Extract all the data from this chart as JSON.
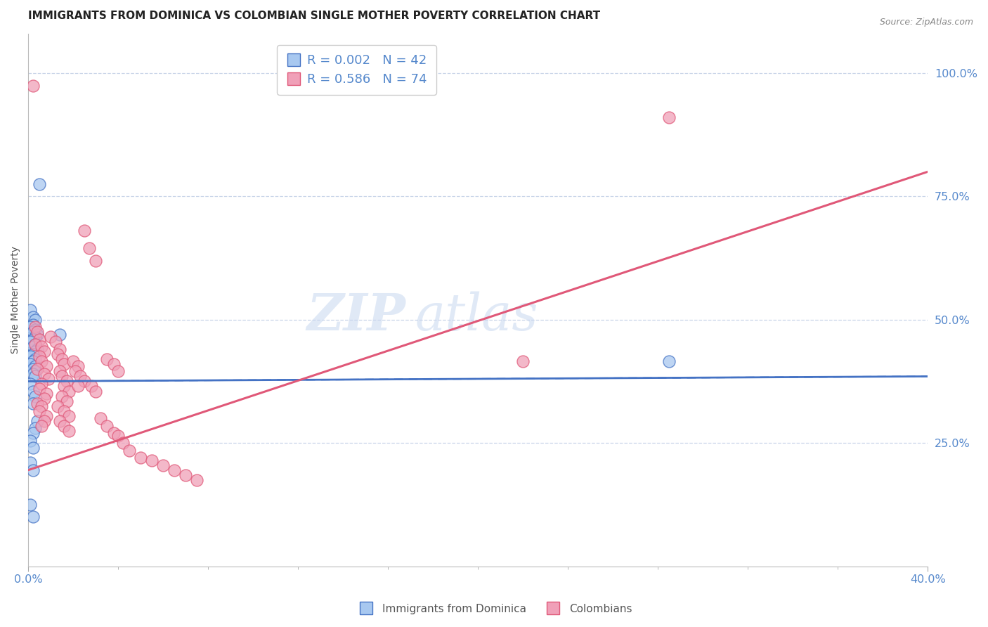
{
  "title": "IMMIGRANTS FROM DOMINICA VS COLOMBIAN SINGLE MOTHER POVERTY CORRELATION CHART",
  "source": "Source: ZipAtlas.com",
  "ylabel": "Single Mother Poverty",
  "xlim": [
    0.0,
    0.4
  ],
  "ylim": [
    0.0,
    1.08
  ],
  "yticks": [
    0.25,
    0.5,
    0.75,
    1.0
  ],
  "ytick_labels": [
    "25.0%",
    "50.0%",
    "75.0%",
    "100.0%"
  ],
  "xticks": [
    0.0,
    0.4
  ],
  "xtick_labels": [
    "0.0%",
    "40.0%"
  ],
  "blue_color": "#a8c8f0",
  "pink_color": "#f0a0b8",
  "blue_line_color": "#4472c4",
  "pink_line_color": "#e05878",
  "axis_color": "#5588cc",
  "grid_color": "#c8d4e8",
  "watermark_text": "ZIP",
  "watermark_text2": "atlas",
  "blue_dots": [
    [
      0.001,
      0.52
    ],
    [
      0.002,
      0.505
    ],
    [
      0.003,
      0.5
    ],
    [
      0.002,
      0.49
    ],
    [
      0.001,
      0.485
    ],
    [
      0.003,
      0.48
    ],
    [
      0.002,
      0.475
    ],
    [
      0.004,
      0.47
    ],
    [
      0.003,
      0.465
    ],
    [
      0.002,
      0.46
    ],
    [
      0.001,
      0.455
    ],
    [
      0.003,
      0.45
    ],
    [
      0.002,
      0.445
    ],
    [
      0.004,
      0.44
    ],
    [
      0.003,
      0.435
    ],
    [
      0.002,
      0.43
    ],
    [
      0.001,
      0.425
    ],
    [
      0.003,
      0.42
    ],
    [
      0.002,
      0.415
    ],
    [
      0.001,
      0.41
    ],
    [
      0.003,
      0.405
    ],
    [
      0.002,
      0.4
    ],
    [
      0.003,
      0.395
    ],
    [
      0.002,
      0.39
    ],
    [
      0.003,
      0.385
    ],
    [
      0.001,
      0.37
    ],
    [
      0.002,
      0.355
    ],
    [
      0.003,
      0.345
    ],
    [
      0.002,
      0.33
    ],
    [
      0.004,
      0.295
    ],
    [
      0.003,
      0.28
    ],
    [
      0.002,
      0.27
    ],
    [
      0.001,
      0.255
    ],
    [
      0.002,
      0.24
    ],
    [
      0.014,
      0.47
    ],
    [
      0.005,
      0.775
    ],
    [
      0.001,
      0.21
    ],
    [
      0.002,
      0.195
    ],
    [
      0.001,
      0.125
    ],
    [
      0.002,
      0.1
    ],
    [
      0.285,
      0.415
    ]
  ],
  "pink_dots": [
    [
      0.002,
      0.975
    ],
    [
      0.285,
      0.91
    ],
    [
      0.003,
      0.485
    ],
    [
      0.004,
      0.475
    ],
    [
      0.005,
      0.46
    ],
    [
      0.003,
      0.45
    ],
    [
      0.006,
      0.445
    ],
    [
      0.007,
      0.435
    ],
    [
      0.005,
      0.425
    ],
    [
      0.006,
      0.415
    ],
    [
      0.008,
      0.405
    ],
    [
      0.004,
      0.4
    ],
    [
      0.007,
      0.39
    ],
    [
      0.009,
      0.38
    ],
    [
      0.006,
      0.37
    ],
    [
      0.005,
      0.36
    ],
    [
      0.008,
      0.35
    ],
    [
      0.007,
      0.34
    ],
    [
      0.004,
      0.33
    ],
    [
      0.006,
      0.325
    ],
    [
      0.005,
      0.315
    ],
    [
      0.008,
      0.305
    ],
    [
      0.007,
      0.295
    ],
    [
      0.006,
      0.285
    ],
    [
      0.01,
      0.465
    ],
    [
      0.012,
      0.455
    ],
    [
      0.014,
      0.44
    ],
    [
      0.013,
      0.43
    ],
    [
      0.015,
      0.42
    ],
    [
      0.016,
      0.41
    ],
    [
      0.014,
      0.395
    ],
    [
      0.015,
      0.385
    ],
    [
      0.017,
      0.375
    ],
    [
      0.016,
      0.365
    ],
    [
      0.018,
      0.355
    ],
    [
      0.015,
      0.345
    ],
    [
      0.017,
      0.335
    ],
    [
      0.013,
      0.325
    ],
    [
      0.016,
      0.315
    ],
    [
      0.018,
      0.305
    ],
    [
      0.014,
      0.295
    ],
    [
      0.016,
      0.285
    ],
    [
      0.018,
      0.275
    ],
    [
      0.02,
      0.415
    ],
    [
      0.022,
      0.405
    ],
    [
      0.021,
      0.395
    ],
    [
      0.023,
      0.385
    ],
    [
      0.025,
      0.375
    ],
    [
      0.022,
      0.365
    ],
    [
      0.025,
      0.68
    ],
    [
      0.027,
      0.645
    ],
    [
      0.03,
      0.62
    ],
    [
      0.028,
      0.365
    ],
    [
      0.03,
      0.355
    ],
    [
      0.035,
      0.42
    ],
    [
      0.038,
      0.41
    ],
    [
      0.04,
      0.395
    ],
    [
      0.032,
      0.3
    ],
    [
      0.035,
      0.285
    ],
    [
      0.038,
      0.27
    ],
    [
      0.04,
      0.265
    ],
    [
      0.042,
      0.25
    ],
    [
      0.045,
      0.235
    ],
    [
      0.05,
      0.22
    ],
    [
      0.055,
      0.215
    ],
    [
      0.06,
      0.205
    ],
    [
      0.065,
      0.195
    ],
    [
      0.07,
      0.185
    ],
    [
      0.075,
      0.175
    ],
    [
      0.22,
      0.415
    ]
  ],
  "blue_line": {
    "x0": 0.0,
    "x1": 0.4,
    "y0": 0.375,
    "y1": 0.385
  },
  "pink_line": {
    "x0": 0.0,
    "x1": 0.4,
    "y0": 0.195,
    "y1": 0.8
  },
  "background_color": "#ffffff",
  "title_fontsize": 11,
  "label_fontsize": 10,
  "tick_fontsize": 11.5,
  "legend_fontsize": 13
}
